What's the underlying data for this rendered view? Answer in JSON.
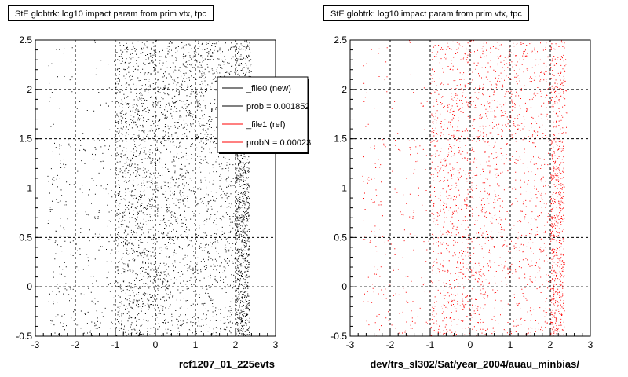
{
  "chart_data": [
    {
      "type": "scatter",
      "title": "StE globtrk: log10 impact param from prim vtx, tpc",
      "xlabel": "rcf1207_01_225evts",
      "ylabel": "",
      "xlim": [
        -3,
        3
      ],
      "ylim": [
        -0.5,
        2.5
      ],
      "xticks": [
        "-3",
        "-2",
        "-1",
        "0",
        "1",
        "2",
        "3"
      ],
      "yticks": [
        "-0.5",
        "0",
        "0.5",
        "1",
        "1.5",
        "2",
        "2.5"
      ],
      "grid": true,
      "series": [
        {
          "name": "_file0 (new)",
          "color": "#000000"
        },
        {
          "name": "_file1 (ref)",
          "color": "#ff0000"
        }
      ],
      "legend": {
        "placement": "top-right",
        "entries": [
          {
            "label": "_file0 (new)",
            "color": "#000000"
          },
          {
            "label": "prob = 0.001852",
            "color": "#000000"
          },
          {
            "label": "_file1 (ref)",
            "color": "#ff0000"
          },
          {
            "label": "probN = 0.00023",
            "color": "#ff0000"
          }
        ]
      },
      "point_color": "#000000"
    },
    {
      "type": "scatter",
      "title": "StE globtrk: log10 impact param from prim vtx, tpc",
      "xlabel": "dev/trs_sl302/Sat/year_2004/auau_minbias/",
      "ylabel": "",
      "xlim": [
        -3,
        3
      ],
      "ylim": [
        -0.5,
        2.5
      ],
      "xticks": [
        "-3",
        "-2",
        "-1",
        "0",
        "1",
        "2",
        "3"
      ],
      "yticks": [
        "-0.5",
        "0",
        "0.5",
        "1",
        "1.5",
        "2",
        "2.5"
      ],
      "grid": true,
      "point_color": "#ff0000"
    }
  ]
}
